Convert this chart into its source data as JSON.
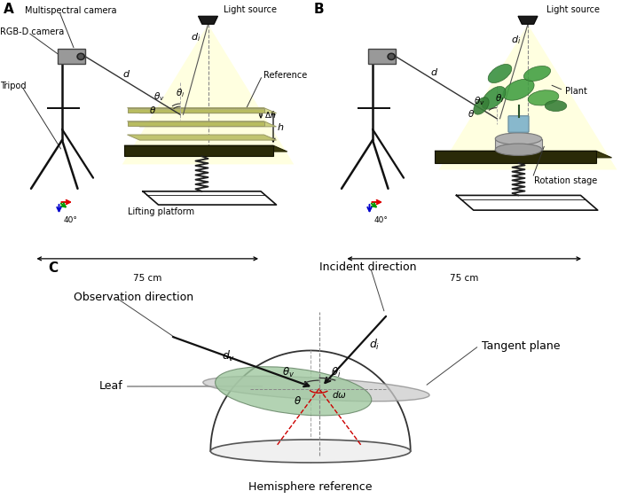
{
  "panel_A_label": "A",
  "panel_B_label": "B",
  "panel_C_label": "C",
  "bg_color": "#ffffff",
  "axis_red": "#dd0000",
  "axis_green": "#009900",
  "axis_blue": "#0000cc",
  "red_dashed": "#cc0000",
  "tripod_color": "#111111",
  "light_cone_color": "#ffffc8",
  "platform_green": "#c8cc70",
  "dark_base": "#2a2a00",
  "spring_color": "#222222",
  "hemisphere_fill": "#d0dce8",
  "leaf_fill": "#a8c8a0",
  "tangent_fill": "#c0d4e4"
}
